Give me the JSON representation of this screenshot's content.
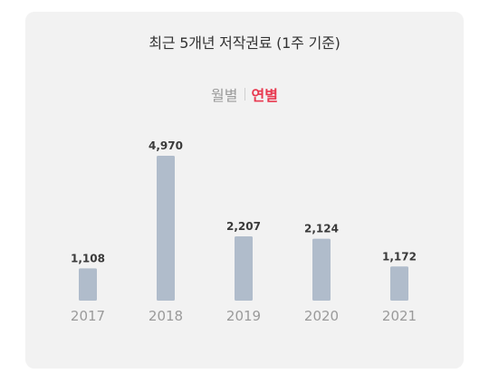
{
  "title": "최근 5개년 저작권료 (1주 기준)",
  "toggle": {
    "monthly_label": "월별",
    "yearly_label": "연별",
    "active": "yearly",
    "active_color": "#e8384f",
    "inactive_color": "#9a9a9a"
  },
  "chart_data": {
    "type": "bar",
    "title": "최근 5개년 저작권료 (1주 기준)",
    "categories": [
      "2017",
      "2018",
      "2019",
      "2020",
      "2021"
    ],
    "values": [
      1108,
      4970,
      2207,
      2124,
      1172
    ],
    "value_labels": [
      "1,108",
      "4,970",
      "2,207",
      "2,124",
      "1,172"
    ],
    "bar_color": "#b0bccb",
    "xlabel": "",
    "ylabel": "",
    "grid": false,
    "legend": "none"
  }
}
